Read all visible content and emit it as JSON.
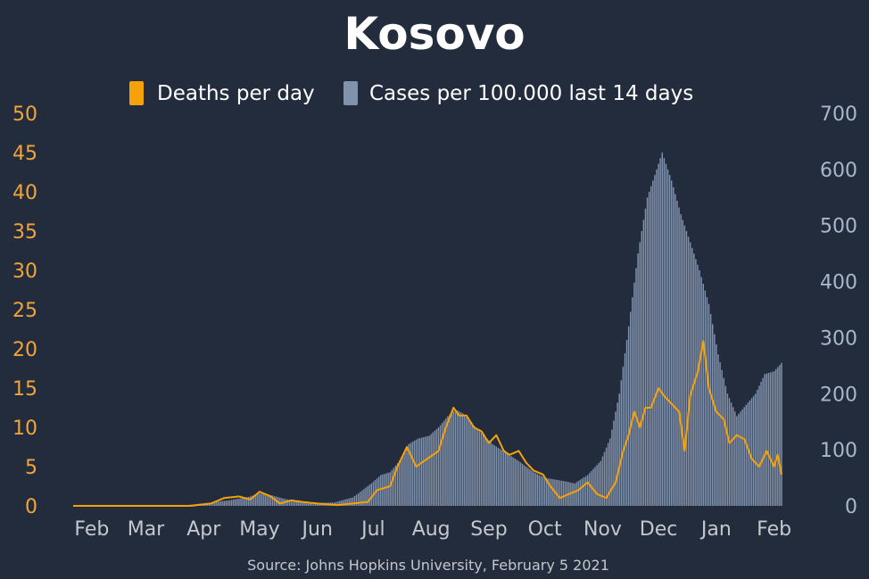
{
  "chart_data": {
    "type": "bar+line",
    "title": "Kosovo",
    "source": "Source: Johns Hopkins University, February 5 2021",
    "x_months": [
      "Feb",
      "Mar",
      "Apr",
      "May",
      "Jun",
      "Jul",
      "Aug",
      "Sep",
      "Oct",
      "Nov",
      "Dec",
      "Jan",
      "Feb"
    ],
    "x_month_dates": [
      "2020-02-01",
      "2020-03-01",
      "2020-04-01",
      "2020-05-01",
      "2020-06-01",
      "2020-07-01",
      "2020-08-01",
      "2020-09-01",
      "2020-10-01",
      "2020-11-01",
      "2020-12-01",
      "2021-01-01",
      "2021-02-01"
    ],
    "x_range": [
      "2020-01-22",
      "2021-02-05"
    ],
    "y_left": {
      "ticks": [
        0,
        5,
        10,
        15,
        20,
        25,
        30,
        35,
        40,
        45,
        50
      ],
      "range": [
        0,
        50
      ]
    },
    "y_right": {
      "ticks": [
        0,
        100,
        200,
        300,
        400,
        500,
        600,
        700
      ],
      "range": [
        0,
        700
      ]
    },
    "legend": {
      "placement": "top-center",
      "entries": [
        "Deaths per day",
        "Cases per 100.000 last 14 days"
      ]
    },
    "colors": {
      "deaths": "#f5a20a",
      "cases": "#8192ad",
      "background": "#232c3d",
      "left_axis": "#f0a43a",
      "right_axis": "#a9b7cc",
      "x_axis": "#c4c7cc",
      "title": "#ffffff"
    },
    "series": [
      {
        "name": "Deaths per day",
        "axis": "left",
        "kind": "line",
        "points": [
          [
            "2020-01-22",
            0
          ],
          [
            "2020-03-25",
            0
          ],
          [
            "2020-04-05",
            0.3
          ],
          [
            "2020-04-12",
            1.0
          ],
          [
            "2020-04-20",
            1.2
          ],
          [
            "2020-04-26",
            0.8
          ],
          [
            "2020-05-01",
            1.8
          ],
          [
            "2020-05-07",
            1.2
          ],
          [
            "2020-05-12",
            0.3
          ],
          [
            "2020-05-18",
            0.7
          ],
          [
            "2020-05-24",
            0.5
          ],
          [
            "2020-06-01",
            0.3
          ],
          [
            "2020-06-12",
            0.1
          ],
          [
            "2020-06-20",
            0.3
          ],
          [
            "2020-06-28",
            0.5
          ],
          [
            "2020-07-03",
            2.0
          ],
          [
            "2020-07-10",
            2.5
          ],
          [
            "2020-07-14",
            5.0
          ],
          [
            "2020-07-19",
            7.5
          ],
          [
            "2020-07-24",
            5.0
          ],
          [
            "2020-07-30",
            6.0
          ],
          [
            "2020-08-05",
            7.0
          ],
          [
            "2020-08-09",
            10.0
          ],
          [
            "2020-08-13",
            12.5
          ],
          [
            "2020-08-16",
            11.5
          ],
          [
            "2020-08-20",
            11.5
          ],
          [
            "2020-08-24",
            10.0
          ],
          [
            "2020-08-28",
            9.5
          ],
          [
            "2020-09-01",
            8.0
          ],
          [
            "2020-09-05",
            9.0
          ],
          [
            "2020-09-09",
            7.0
          ],
          [
            "2020-09-12",
            6.5
          ],
          [
            "2020-09-17",
            7.0
          ],
          [
            "2020-09-21",
            5.5
          ],
          [
            "2020-09-25",
            4.5
          ],
          [
            "2020-09-30",
            4.0
          ],
          [
            "2020-10-04",
            2.5
          ],
          [
            "2020-10-09",
            1.0
          ],
          [
            "2020-10-14",
            1.5
          ],
          [
            "2020-10-19",
            2.0
          ],
          [
            "2020-10-24",
            3.0
          ],
          [
            "2020-10-29",
            1.5
          ],
          [
            "2020-11-03",
            1.0
          ],
          [
            "2020-11-08",
            3.0
          ],
          [
            "2020-11-12",
            7.0
          ],
          [
            "2020-11-15",
            9.0
          ],
          [
            "2020-11-18",
            12.0
          ],
          [
            "2020-11-21",
            10.0
          ],
          [
            "2020-11-24",
            12.5
          ],
          [
            "2020-11-27",
            12.5
          ],
          [
            "2020-12-01",
            15.0
          ],
          [
            "2020-12-04",
            14.0
          ],
          [
            "2020-12-08",
            13.0
          ],
          [
            "2020-12-12",
            12.0
          ],
          [
            "2020-12-15",
            7.0
          ],
          [
            "2020-12-18",
            14.0
          ],
          [
            "2020-12-22",
            17.0
          ],
          [
            "2020-12-25",
            21.0
          ],
          [
            "2020-12-28",
            15.0
          ],
          [
            "2021-01-01",
            12.0
          ],
          [
            "2021-01-05",
            11.0
          ],
          [
            "2021-01-08",
            8.0
          ],
          [
            "2021-01-12",
            9.0
          ],
          [
            "2021-01-16",
            8.5
          ],
          [
            "2021-01-20",
            6.0
          ],
          [
            "2021-01-24",
            5.0
          ],
          [
            "2021-01-28",
            7.0
          ],
          [
            "2021-02-01",
            5.0
          ],
          [
            "2021-02-03",
            6.5
          ],
          [
            "2021-02-05",
            4.0
          ]
        ]
      },
      {
        "name": "Cases per 100.000 last 14 days",
        "axis": "right",
        "kind": "bar",
        "points": [
          [
            "2020-01-22",
            0
          ],
          [
            "2020-03-15",
            0
          ],
          [
            "2020-03-25",
            2
          ],
          [
            "2020-04-05",
            6
          ],
          [
            "2020-04-15",
            10
          ],
          [
            "2020-04-25",
            16
          ],
          [
            "2020-05-01",
            22
          ],
          [
            "2020-05-06",
            20
          ],
          [
            "2020-05-15",
            12
          ],
          [
            "2020-05-22",
            8
          ],
          [
            "2020-06-01",
            5
          ],
          [
            "2020-06-10",
            6
          ],
          [
            "2020-06-20",
            15
          ],
          [
            "2020-06-30",
            40
          ],
          [
            "2020-07-05",
            55
          ],
          [
            "2020-07-10",
            60
          ],
          [
            "2020-07-15",
            80
          ],
          [
            "2020-07-20",
            110
          ],
          [
            "2020-07-25",
            120
          ],
          [
            "2020-07-31",
            125
          ],
          [
            "2020-08-05",
            140
          ],
          [
            "2020-08-10",
            160
          ],
          [
            "2020-08-14",
            172
          ],
          [
            "2020-08-18",
            165
          ],
          [
            "2020-08-22",
            150
          ],
          [
            "2020-08-28",
            130
          ],
          [
            "2020-09-03",
            110
          ],
          [
            "2020-09-10",
            95
          ],
          [
            "2020-09-17",
            80
          ],
          [
            "2020-09-25",
            60
          ],
          [
            "2020-10-01",
            50
          ],
          [
            "2020-10-10",
            45
          ],
          [
            "2020-10-17",
            40
          ],
          [
            "2020-10-24",
            55
          ],
          [
            "2020-10-31",
            80
          ],
          [
            "2020-11-05",
            120
          ],
          [
            "2020-11-10",
            200
          ],
          [
            "2020-11-15",
            320
          ],
          [
            "2020-11-20",
            450
          ],
          [
            "2020-11-25",
            550
          ],
          [
            "2020-11-30",
            600
          ],
          [
            "2020-12-03",
            630
          ],
          [
            "2020-12-08",
            580
          ],
          [
            "2020-12-13",
            520
          ],
          [
            "2020-12-18",
            470
          ],
          [
            "2020-12-23",
            420
          ],
          [
            "2020-12-28",
            360
          ],
          [
            "2021-01-02",
            270
          ],
          [
            "2021-01-07",
            200
          ],
          [
            "2021-01-12",
            160
          ],
          [
            "2021-01-17",
            180
          ],
          [
            "2021-01-22",
            200
          ],
          [
            "2021-01-27",
            235
          ],
          [
            "2021-02-01",
            240
          ],
          [
            "2021-02-05",
            255
          ]
        ]
      }
    ]
  }
}
